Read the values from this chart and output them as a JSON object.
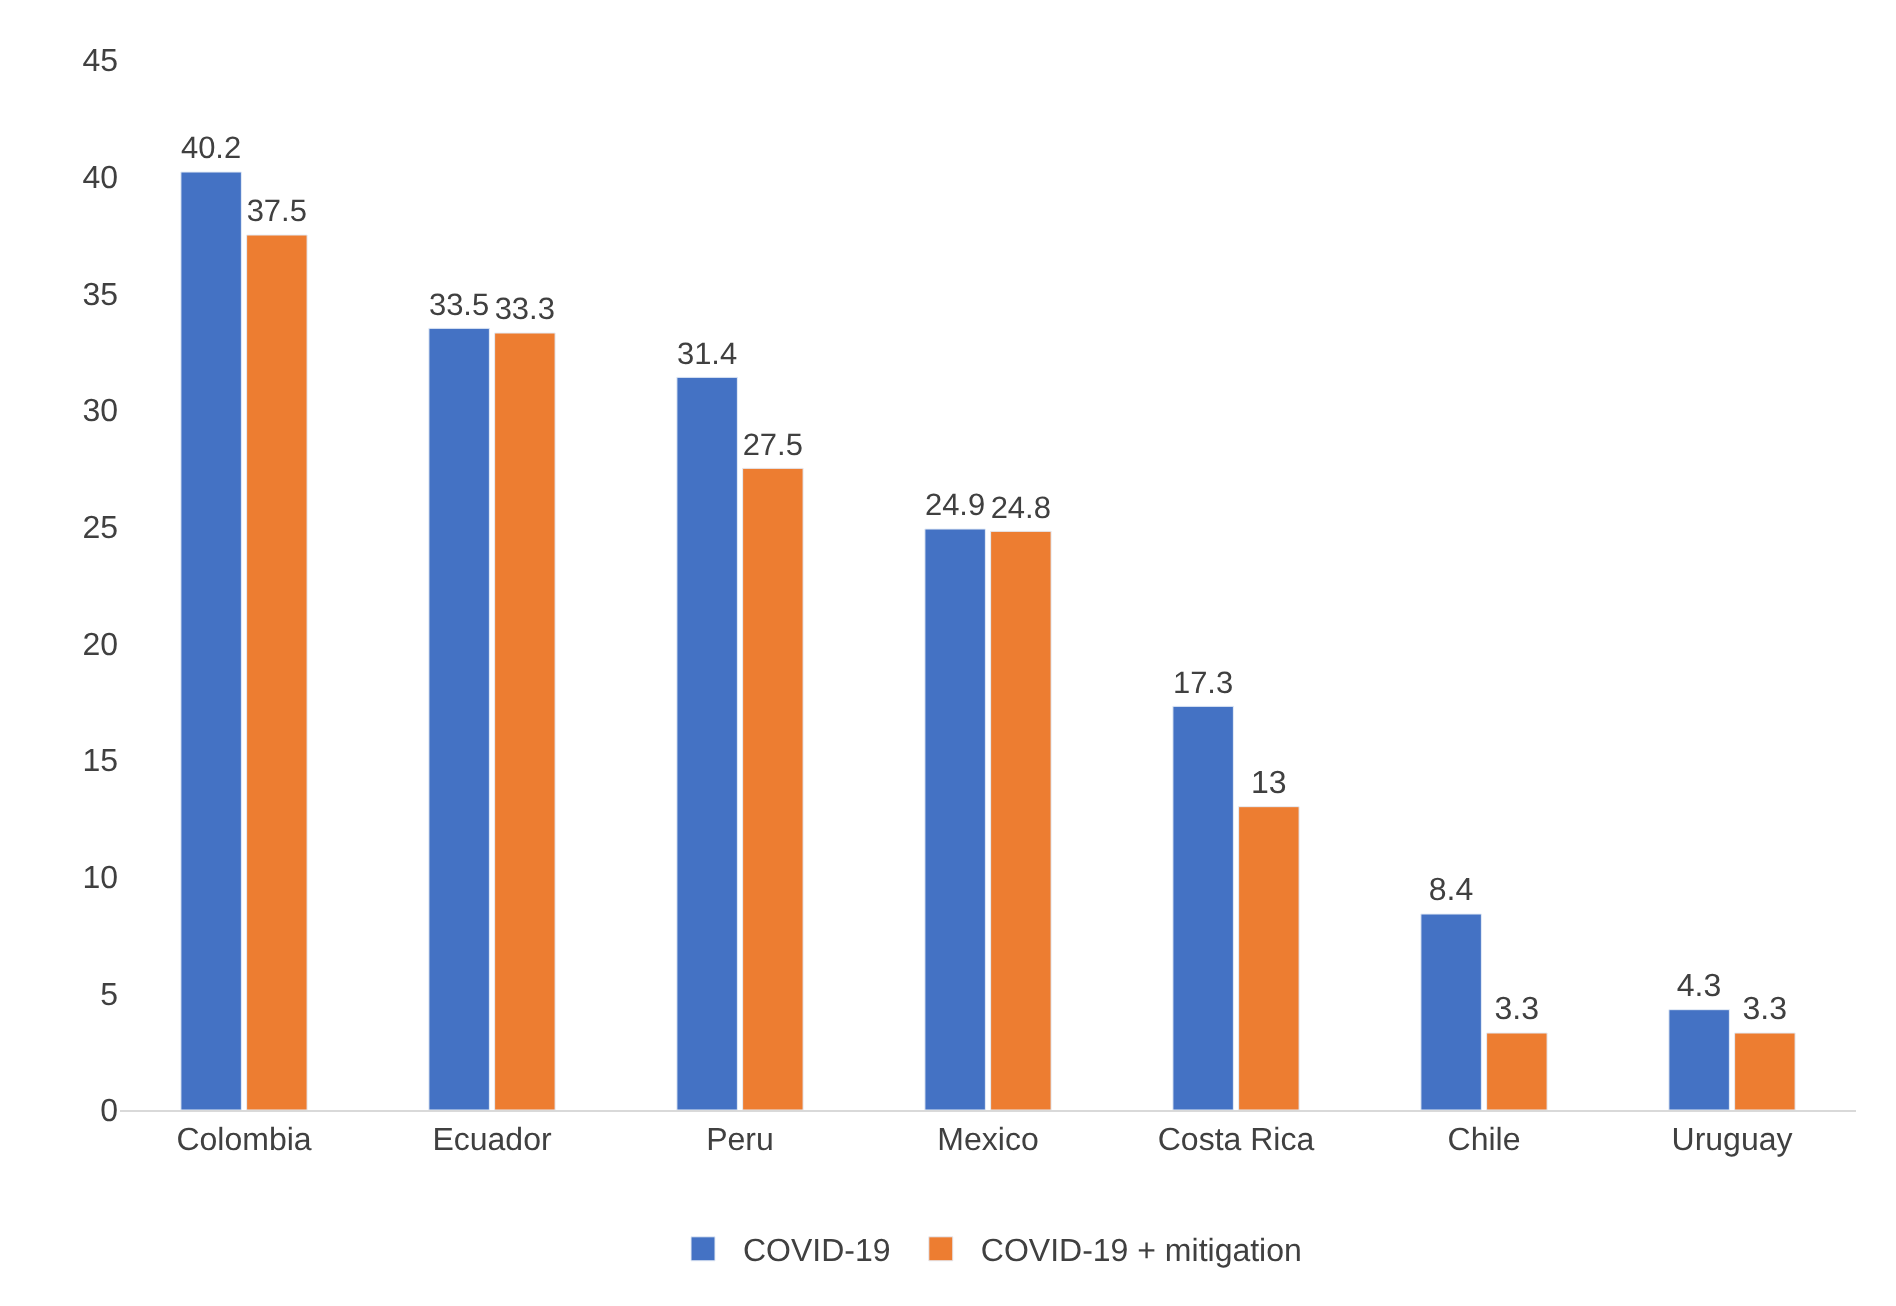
{
  "chart_data": {
    "type": "bar",
    "categories": [
      "Colombia",
      "Ecuador",
      "Peru",
      "Mexico",
      "Costa Rica",
      "Chile",
      "Uruguay"
    ],
    "series": [
      {
        "name": "COVID-19",
        "color": "#4472c4",
        "values": [
          40.2,
          33.5,
          31.4,
          24.9,
          17.3,
          8.4,
          4.3
        ]
      },
      {
        "name": "COVID-19 + mitigation",
        "color": "#ed7d31",
        "values": [
          37.5,
          33.3,
          27.5,
          24.8,
          13,
          3.3,
          3.3
        ]
      }
    ],
    "ylim": [
      0,
      45
    ],
    "yticks": [
      0,
      5,
      10,
      15,
      20,
      25,
      30,
      35,
      40,
      45
    ],
    "data_labels": true,
    "grid": false,
    "legend": "bottom"
  }
}
